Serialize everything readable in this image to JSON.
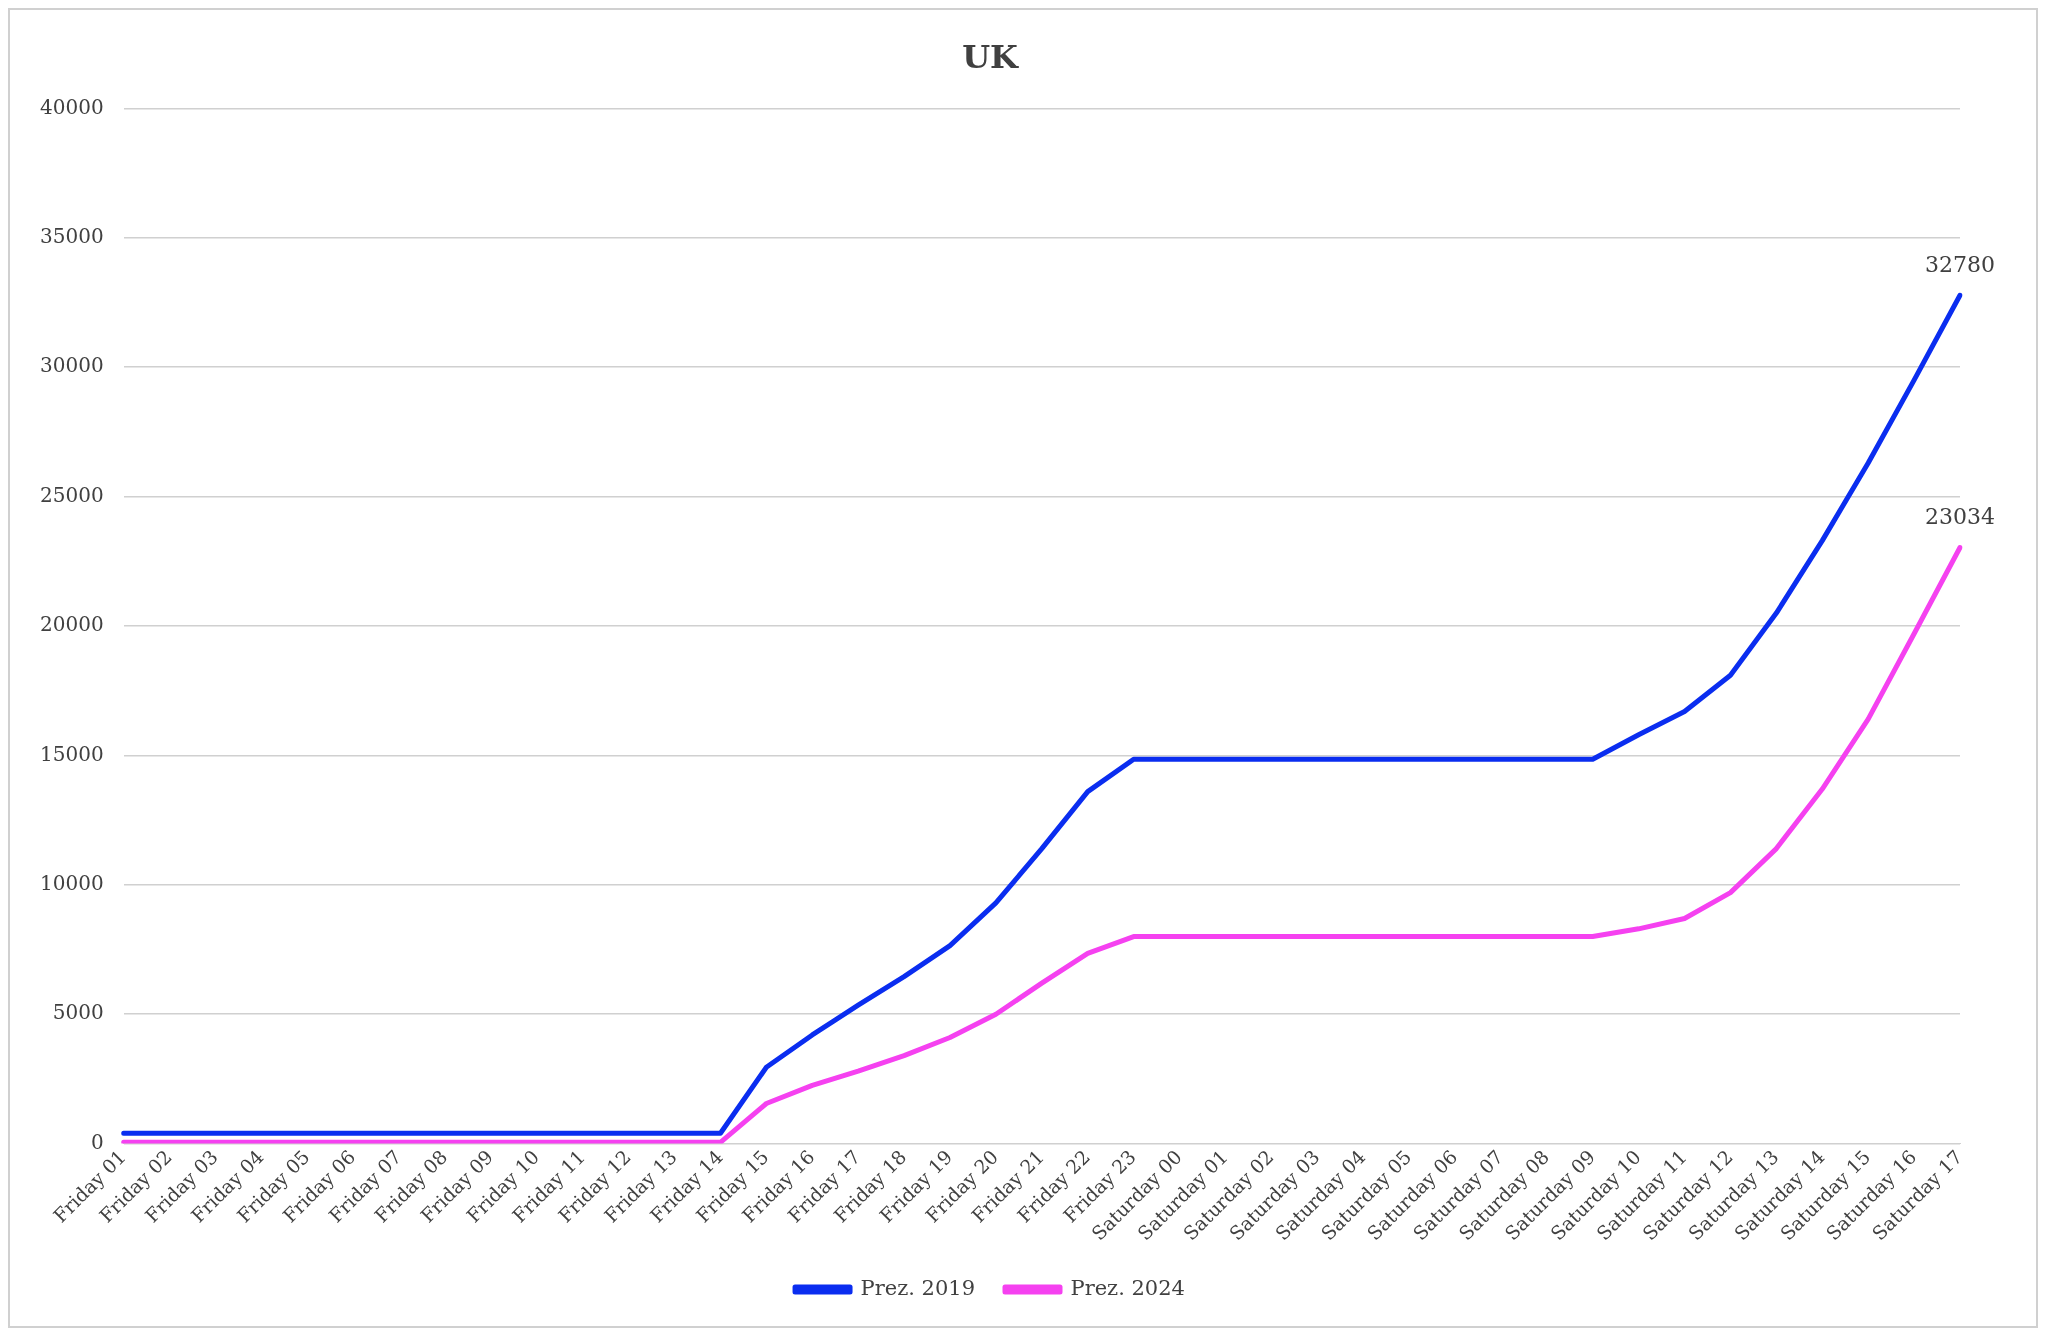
{
  "chart_data": {
    "type": "line",
    "title": "UK",
    "categories": [
      "Friday 01",
      "Friday 02",
      "Friday 03",
      "Friday 04",
      "Friday 05",
      "Friday 06",
      "Friday 07",
      "Friday 08",
      "Friday 09",
      "Friday 10",
      "Friday 11",
      "Friday 12",
      "Friday 13",
      "Friday 14",
      "Friday 15",
      "Friday 16",
      "Friday 17",
      "Friday 18",
      "Friday 19",
      "Friday 20",
      "Friday 21",
      "Friday 22",
      "Friday 23",
      "Saturday 00",
      "Saturday 01",
      "Saturday 02",
      "Saturday 03",
      "Saturday 04",
      "Saturday 05",
      "Saturday 06",
      "Saturday 07",
      "Saturday 08",
      "Saturday 09",
      "Saturday 10",
      "Saturday 11",
      "Saturday 12",
      "Saturday 13",
      "Saturday 14",
      "Saturday 15",
      "Saturday 16",
      "Saturday 17"
    ],
    "series": [
      {
        "name": "Prez. 2019",
        "color": "#0a2df0",
        "values": [
          400,
          400,
          400,
          400,
          400,
          400,
          400,
          400,
          400,
          400,
          400,
          400,
          400,
          400,
          2950,
          4200,
          5350,
          6450,
          7650,
          9300,
          11400,
          13600,
          14850,
          14850,
          14850,
          14850,
          14850,
          14850,
          14850,
          14850,
          14850,
          14850,
          14850,
          15800,
          16700,
          18100,
          20500,
          23300,
          26300,
          29500,
          32780
        ],
        "value_labels": [
          null,
          null,
          null,
          null,
          null,
          null,
          null,
          null,
          null,
          null,
          null,
          null,
          null,
          null,
          null,
          null,
          null,
          null,
          null,
          null,
          null,
          null,
          null,
          null,
          null,
          null,
          null,
          null,
          null,
          null,
          null,
          null,
          null,
          null,
          null,
          null,
          null,
          null,
          null,
          null,
          "32780"
        ]
      },
      {
        "name": "Prez. 2024",
        "color": "#f541f0",
        "values": [
          50,
          50,
          50,
          50,
          50,
          50,
          50,
          50,
          50,
          50,
          50,
          50,
          50,
          50,
          1550,
          2250,
          2800,
          3400,
          4100,
          5000,
          6200,
          7350,
          8000,
          8000,
          8000,
          8000,
          8000,
          8000,
          8000,
          8000,
          8000,
          8000,
          8000,
          8300,
          8700,
          9700,
          11400,
          13700,
          16400,
          19700,
          23034
        ],
        "value_labels": [
          null,
          null,
          null,
          null,
          null,
          null,
          null,
          null,
          null,
          null,
          null,
          null,
          null,
          null,
          null,
          null,
          null,
          null,
          null,
          null,
          null,
          null,
          null,
          null,
          null,
          null,
          null,
          null,
          null,
          null,
          null,
          null,
          null,
          null,
          null,
          null,
          null,
          null,
          null,
          null,
          "23034"
        ]
      }
    ],
    "ylim": [
      0,
      40000
    ],
    "yticks": [
      0,
      5000,
      10000,
      15000,
      20000,
      25000,
      30000,
      35000,
      40000
    ],
    "grid": "y",
    "legend": "bottom",
    "marker": "none",
    "line_style": "solid"
  }
}
